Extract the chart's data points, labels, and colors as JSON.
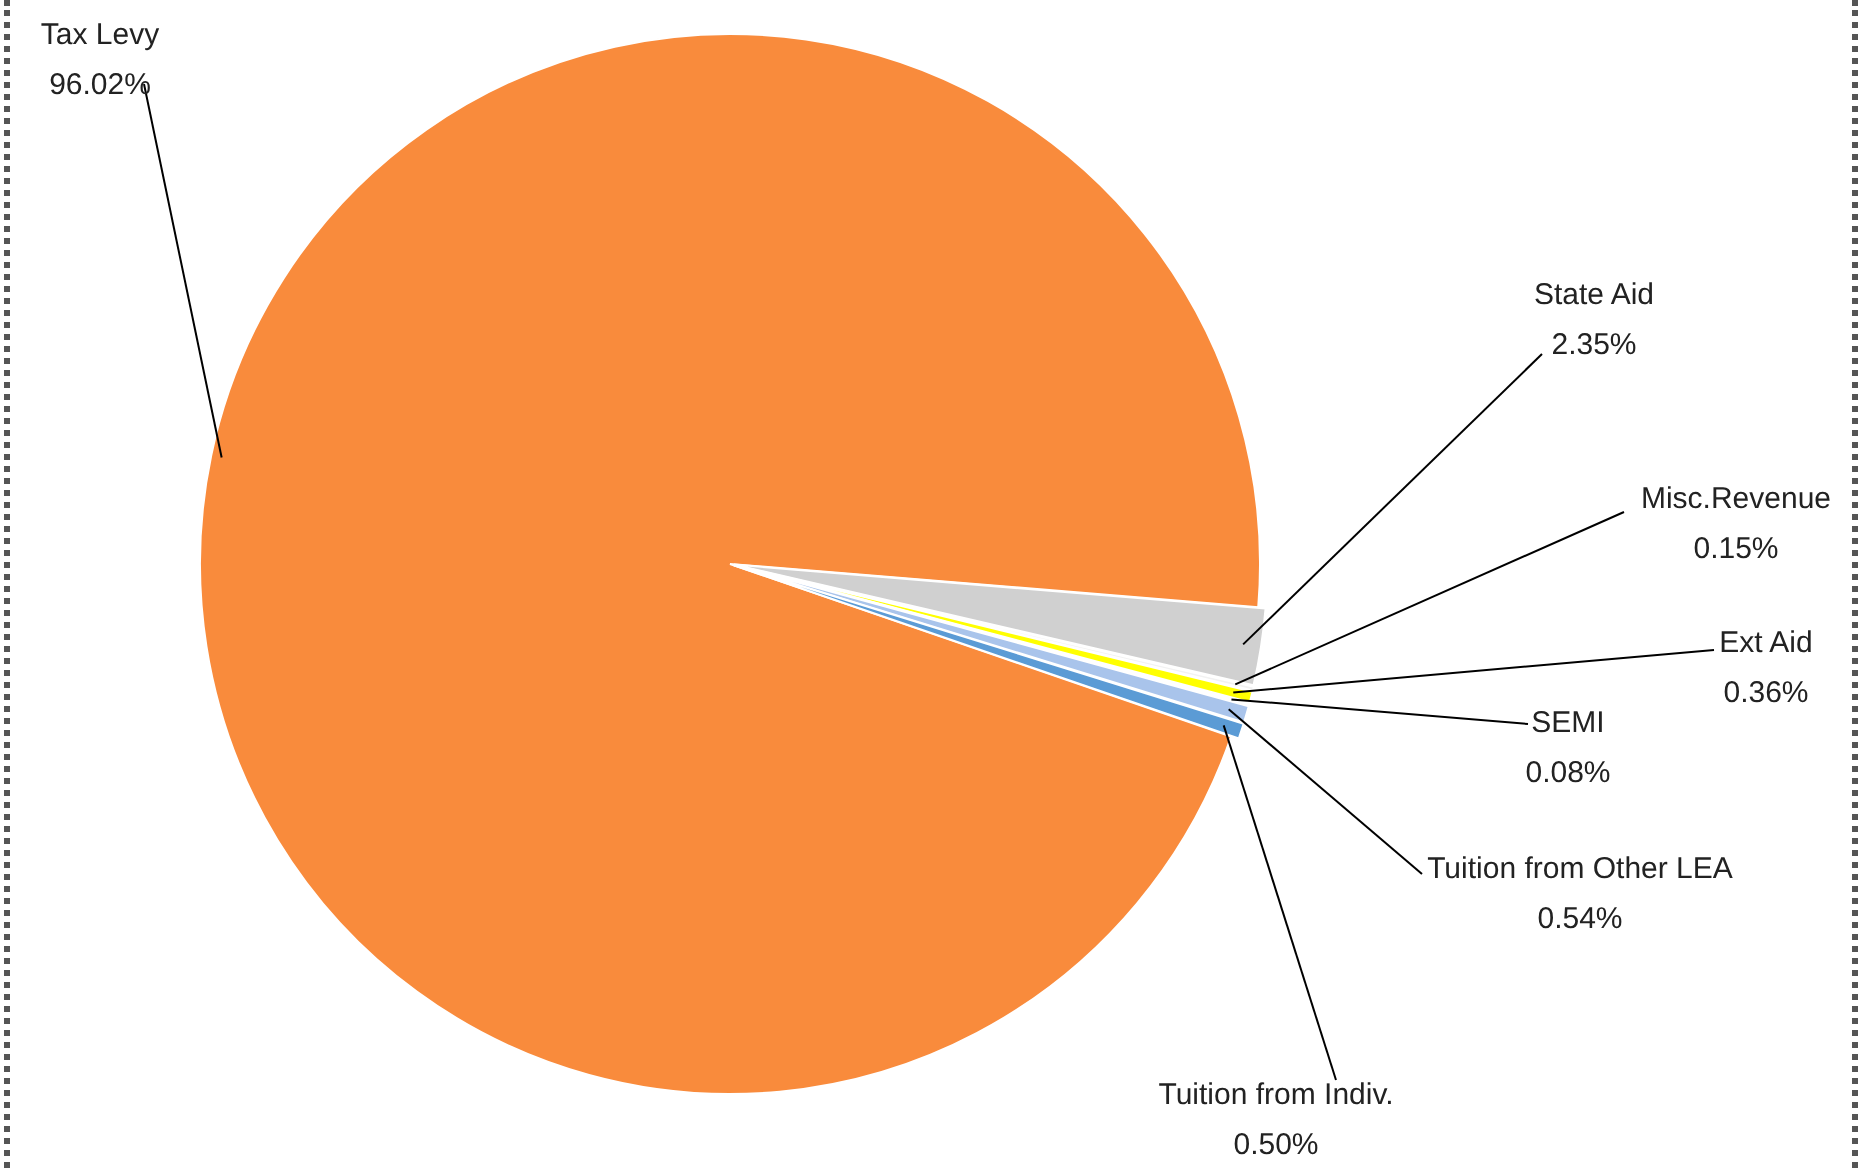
{
  "chart_data": {
    "type": "pie",
    "categories": [
      "Tax Levy",
      "State Aid",
      "Misc.Revenue",
      "Ext Aid",
      "SEMI",
      "Tuition from Other LEA",
      "Tuition from Indiv."
    ],
    "values": [
      96.02,
      2.35,
      0.15,
      0.36,
      0.08,
      0.54,
      0.5
    ],
    "colors": [
      "#f98b3c",
      "#d0d0d0",
      "#f2f2f2",
      "#ffff00",
      "#c5d9f1",
      "#a9c4eb",
      "#5b9bd5"
    ],
    "value_labels": [
      "96.02%",
      "2.35%",
      "0.15%",
      "0.36%",
      "0.08%",
      "0.54%",
      "0.50%"
    ]
  }
}
